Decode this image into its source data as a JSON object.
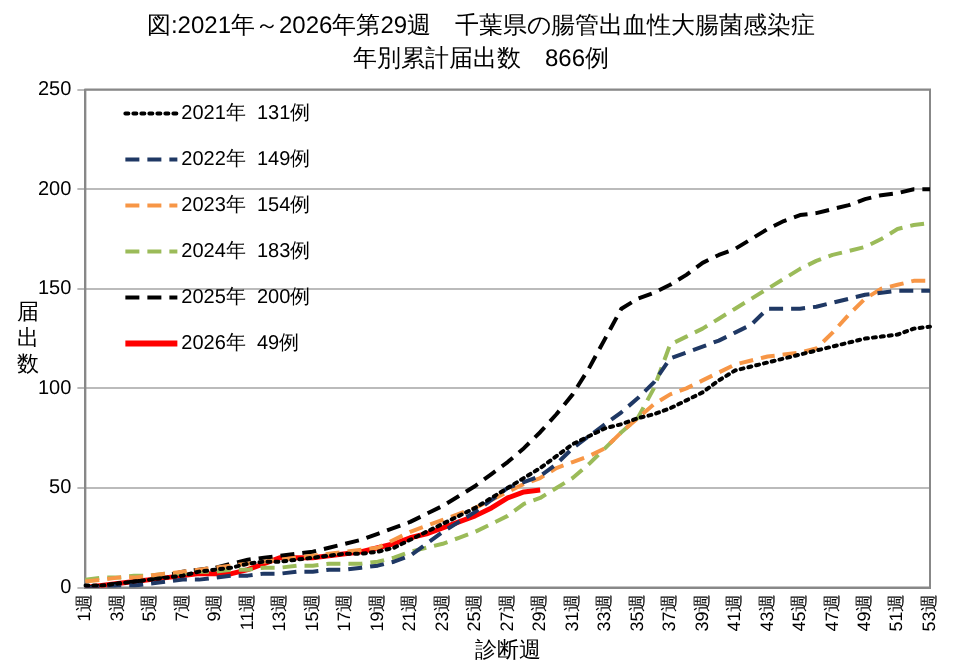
{
  "chart_data": {
    "type": "line",
    "title": "図:2021年～2026年第29週　千葉県の腸管出血性大腸菌感染症",
    "subtitle": "年別累計届出数　866例",
    "xlabel": "診断週",
    "ylabel": "届出数",
    "categories": [
      "1週",
      null,
      "3週",
      null,
      "5週",
      null,
      "7週",
      null,
      "9週",
      null,
      "11週",
      null,
      "13週",
      null,
      "15週",
      null,
      "17週",
      null,
      "19週",
      null,
      "21週",
      null,
      "23週",
      null,
      "25週",
      null,
      "27週",
      null,
      "29週",
      null,
      "31週",
      null,
      "33週",
      null,
      "35週",
      null,
      "37週",
      null,
      "39週",
      null,
      "41週",
      null,
      "43週",
      null,
      "45週",
      null,
      "47週",
      null,
      "49週",
      null,
      "51週",
      null,
      "53週"
    ],
    "ylim": [
      0,
      250
    ],
    "yticks": [
      0,
      50,
      100,
      150,
      200,
      250
    ],
    "grid": "y",
    "legend": "top left",
    "marker": "none",
    "series": [
      {
        "name": "2021年  131例",
        "color": "#000000",
        "line_style": "dotted",
        "values": [
          1,
          1,
          2,
          3,
          4,
          5,
          6,
          8,
          9,
          10,
          12,
          13,
          13,
          14,
          15,
          16,
          17,
          17,
          18,
          20,
          24,
          28,
          32,
          36,
          40,
          45,
          50,
          55,
          60,
          66,
          72,
          76,
          80,
          82,
          85,
          87,
          90,
          94,
          98,
          104,
          109,
          111,
          113,
          115,
          117,
          119,
          121,
          123,
          125,
          126,
          127,
          130,
          131
        ]
      },
      {
        "name": "2022年  149例",
        "color": "#1f3864",
        "line_style": "dashed",
        "values": [
          0,
          0,
          1,
          1,
          2,
          3,
          4,
          4,
          5,
          6,
          6,
          7,
          7,
          8,
          8,
          9,
          9,
          10,
          11,
          13,
          16,
          22,
          28,
          33,
          38,
          44,
          50,
          53,
          56,
          62,
          70,
          76,
          82,
          88,
          95,
          103,
          115,
          118,
          121,
          124,
          128,
          132,
          140,
          140,
          140,
          141,
          143,
          145,
          147,
          148,
          149,
          149,
          149
        ]
      },
      {
        "name": "2023年  154例",
        "color": "#f79646",
        "line_style": "dashed",
        "values": [
          3,
          4,
          5,
          5,
          6,
          7,
          8,
          9,
          10,
          11,
          12,
          13,
          14,
          15,
          16,
          17,
          18,
          19,
          20,
          24,
          28,
          31,
          34,
          37,
          40,
          44,
          48,
          52,
          55,
          60,
          63,
          66,
          70,
          78,
          85,
          92,
          97,
          100,
          104,
          108,
          112,
          114,
          116,
          117,
          118,
          120,
          128,
          137,
          145,
          150,
          152,
          154,
          154
        ]
      },
      {
        "name": "2024年  183例",
        "color": "#9bbb59",
        "line_style": "dashed",
        "values": [
          4,
          5,
          5,
          6,
          6,
          7,
          7,
          8,
          8,
          9,
          9,
          10,
          10,
          11,
          11,
          12,
          12,
          12,
          13,
          15,
          18,
          20,
          22,
          25,
          28,
          32,
          36,
          42,
          45,
          50,
          55,
          62,
          70,
          78,
          85,
          100,
          122,
          126,
          130,
          135,
          140,
          145,
          150,
          155,
          160,
          164,
          167,
          169,
          171,
          175,
          180,
          182,
          183
        ]
      },
      {
        "name": "2025年  200例",
        "color": "#000000",
        "line_style": "dashed",
        "values": [
          0,
          1,
          2,
          3,
          4,
          6,
          8,
          9,
          10,
          12,
          14,
          15,
          16,
          17,
          18,
          20,
          22,
          24,
          27,
          30,
          33,
          37,
          41,
          46,
          51,
          57,
          63,
          70,
          78,
          87,
          97,
          110,
          125,
          140,
          145,
          148,
          152,
          157,
          163,
          167,
          170,
          175,
          180,
          184,
          187,
          188,
          190,
          192,
          195,
          197,
          198,
          200,
          200
        ]
      },
      {
        "name": "2026年  49例",
        "color": "#ff0000",
        "line_style": "solid",
        "values": [
          0,
          1,
          2,
          3,
          4,
          5,
          6,
          7,
          7,
          7,
          9,
          12,
          15,
          15,
          15,
          16,
          17,
          18,
          20,
          22,
          25,
          27,
          30,
          33,
          36,
          40,
          45,
          48,
          49,
          null,
          null,
          null,
          null,
          null,
          null,
          null,
          null,
          null,
          null,
          null,
          null,
          null,
          null,
          null,
          null,
          null,
          null,
          null,
          null,
          null,
          null,
          null,
          null
        ]
      }
    ]
  }
}
